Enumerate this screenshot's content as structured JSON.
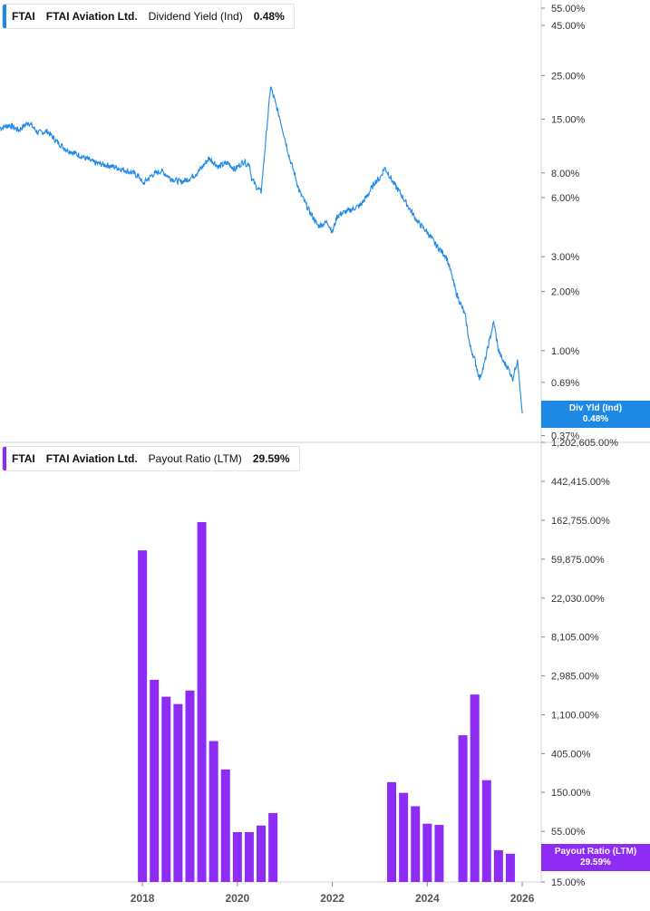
{
  "top_legend": {
    "ticker": "FTAI",
    "company": "FTAI Aviation Ltd.",
    "metric": "Dividend Yield (Ind)",
    "value": "0.48%",
    "color": "#1e88e5"
  },
  "bottom_legend": {
    "ticker": "FTAI",
    "company": "FTAI Aviation Ltd.",
    "metric": "Payout Ratio (LTM)",
    "value": "29.59%",
    "color": "#8e2cf5"
  },
  "top_badge": {
    "line1": "Div Yld (Ind)",
    "line2": "0.48%"
  },
  "bottom_badge": {
    "line1": "Payout Ratio (LTM)",
    "line2": "29.59%"
  },
  "chart_data": [
    {
      "type": "line",
      "ylabel": "Dividend Yield (Ind)",
      "yscale": "log",
      "y_ticks": [
        {
          "value": 55,
          "label": "55.00%"
        },
        {
          "value": 45,
          "label": "45.00%"
        },
        {
          "value": 25,
          "label": "25.00%"
        },
        {
          "value": 15,
          "label": "15.00%"
        },
        {
          "value": 8,
          "label": "8.00%"
        },
        {
          "value": 6,
          "label": "6.00%"
        },
        {
          "value": 3,
          "label": "3.00%"
        },
        {
          "value": 2,
          "label": "2.00%"
        },
        {
          "value": 1,
          "label": "1.00%"
        },
        {
          "value": 0.69,
          "label": "0.69%"
        },
        {
          "value": 0.37,
          "label": "0.37%"
        }
      ],
      "ylim": [
        0.35,
        58
      ],
      "series": [
        {
          "name": "Dividend Yield (Ind)",
          "x": [
            2015.0,
            2015.2,
            2015.4,
            2015.6,
            2015.8,
            2016.0,
            2016.2,
            2016.4,
            2016.6,
            2016.8,
            2017.0,
            2017.2,
            2017.4,
            2017.6,
            2017.8,
            2017.95,
            2018.0,
            2018.2,
            2018.4,
            2018.6,
            2018.8,
            2018.95,
            2019.1,
            2019.25,
            2019.4,
            2019.6,
            2019.8,
            2019.95,
            2020.0,
            2020.05,
            2020.1,
            2020.15,
            2020.2,
            2020.25,
            2020.3,
            2020.4,
            2020.5,
            2020.7,
            2020.9,
            2021.0,
            2021.1,
            2021.2,
            2021.3,
            2021.5,
            2021.7,
            2021.9,
            2022.0,
            2022.1,
            2022.2,
            2022.4,
            2022.6,
            2022.75,
            2022.9,
            2023.0,
            2023.1,
            2023.2,
            2023.3,
            2023.4,
            2023.6,
            2023.8,
            2024.0,
            2024.2,
            2024.4,
            2024.5,
            2024.6,
            2024.8,
            2024.9,
            2025.0,
            2025.1,
            2025.2,
            2025.3,
            2025.4,
            2025.5,
            2025.6,
            2025.7,
            2025.8,
            2025.9,
            2026.0
          ],
          "y": [
            13.5,
            14.0,
            13.2,
            14.5,
            12.8,
            13.0,
            11.5,
            10.5,
            10.0,
            9.5,
            9.0,
            8.8,
            8.6,
            8.3,
            8.0,
            7.6,
            7.0,
            7.8,
            8.2,
            7.5,
            7.2,
            7.4,
            7.8,
            8.5,
            9.5,
            8.6,
            9.0,
            8.3,
            8.6,
            8.8,
            9.0,
            9.2,
            8.8,
            9.0,
            7.5,
            6.8,
            6.4,
            22.0,
            15.0,
            12.0,
            9.5,
            8.0,
            6.5,
            5.2,
            4.3,
            4.5,
            4.0,
            4.8,
            5.0,
            5.2,
            5.5,
            6.2,
            7.2,
            7.5,
            8.5,
            7.8,
            7.0,
            6.5,
            5.4,
            4.5,
            4.0,
            3.4,
            3.0,
            2.5,
            2.0,
            1.5,
            1.05,
            0.9,
            0.72,
            0.85,
            1.1,
            1.4,
            1.0,
            0.88,
            0.82,
            0.72,
            0.9,
            0.48
          ]
        }
      ]
    },
    {
      "type": "bar",
      "ylabel": "Payout Ratio (LTM)",
      "yscale": "log",
      "y_ticks": [
        {
          "value": 1202605,
          "label": "1,202,605.00%"
        },
        {
          "value": 442415,
          "label": "442,415.00%"
        },
        {
          "value": 162755,
          "label": "162,755.00%"
        },
        {
          "value": 59875,
          "label": "59,875.00%"
        },
        {
          "value": 22030,
          "label": "22,030.00%"
        },
        {
          "value": 8105,
          "label": "8,105.00%"
        },
        {
          "value": 2985,
          "label": "2,985.00%"
        },
        {
          "value": 1100,
          "label": "1,100.00%"
        },
        {
          "value": 405,
          "label": "405.00%"
        },
        {
          "value": 150,
          "label": "150.00%"
        },
        {
          "value": 55,
          "label": "55.00%"
        },
        {
          "value": 15,
          "label": "15.00%"
        }
      ],
      "ylim": [
        15,
        1202605
      ],
      "x_ticks": [
        "2018",
        "2020",
        "2022",
        "2024",
        "2026"
      ],
      "bars": [
        {
          "x": 2018.0,
          "value": 75000
        },
        {
          "x": 2018.25,
          "value": 2700
        },
        {
          "x": 2018.5,
          "value": 1750
        },
        {
          "x": 2018.75,
          "value": 1450
        },
        {
          "x": 2019.0,
          "value": 2050
        },
        {
          "x": 2019.25,
          "value": 155000
        },
        {
          "x": 2019.5,
          "value": 560
        },
        {
          "x": 2019.75,
          "value": 270
        },
        {
          "x": 2020.0,
          "value": 54
        },
        {
          "x": 2020.25,
          "value": 54
        },
        {
          "x": 2020.5,
          "value": 64
        },
        {
          "x": 2020.75,
          "value": 88
        },
        {
          "x": 2023.25,
          "value": 195
        },
        {
          "x": 2023.5,
          "value": 148
        },
        {
          "x": 2023.75,
          "value": 105
        },
        {
          "x": 2024.0,
          "value": 67
        },
        {
          "x": 2024.25,
          "value": 65
        },
        {
          "x": 2024.75,
          "value": 650
        },
        {
          "x": 2025.0,
          "value": 1850
        },
        {
          "x": 2025.25,
          "value": 205
        },
        {
          "x": 2025.5,
          "value": 34
        },
        {
          "x": 2025.75,
          "value": 31
        }
      ]
    }
  ]
}
